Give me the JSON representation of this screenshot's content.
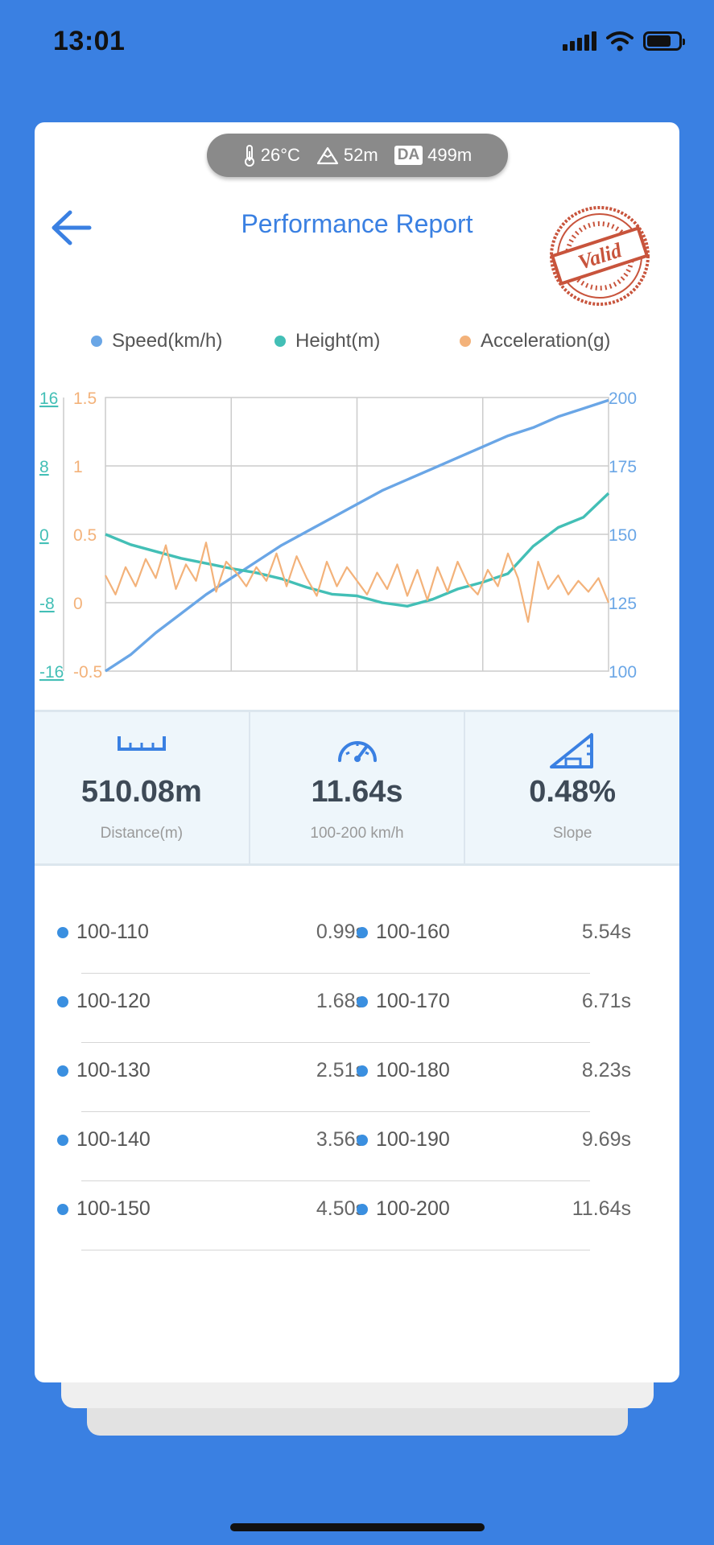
{
  "status_bar": {
    "time": "13:01"
  },
  "environment": {
    "temperature": "26°C",
    "altitude": "52m",
    "da_label": "DA",
    "density_altitude": "499m"
  },
  "header": {
    "title": "Performance Report",
    "stamp_text": "Valid"
  },
  "legend": [
    {
      "label": "Speed(km/h)",
      "color": "#6aa6e6"
    },
    {
      "label": "Height(m)",
      "color": "#43bfb6"
    },
    {
      "label": "Acceleration(g)",
      "color": "#f3b27a"
    }
  ],
  "chart_data": {
    "type": "line",
    "axes": {
      "height_ticks": [
        "16",
        "8",
        "0",
        "-8",
        "-16"
      ],
      "accel_ticks": [
        "1.5",
        "1",
        "0.5",
        "0",
        "-0.5"
      ],
      "speed_ticks": [
        "200",
        "175",
        "150",
        "125",
        "100"
      ],
      "height_range": [
        -16,
        16
      ],
      "accel_range": [
        -0.5,
        1.5
      ],
      "speed_range": [
        100,
        200
      ]
    },
    "x_range": [
      0,
      100
    ],
    "grid": true,
    "series": [
      {
        "name": "Speed(km/h)",
        "color": "#6aa6e6",
        "axis": "speed",
        "x": [
          0,
          5,
          10,
          15,
          20,
          25,
          30,
          35,
          40,
          45,
          50,
          55,
          60,
          65,
          70,
          75,
          80,
          85,
          90,
          95,
          100
        ],
        "y": [
          100,
          106,
          114,
          121,
          128,
          134,
          140,
          146,
          151,
          156,
          161,
          166,
          170,
          174,
          178,
          182,
          186,
          189,
          193,
          196,
          199
        ]
      },
      {
        "name": "Height(m)",
        "color": "#43bfb6",
        "axis": "height",
        "x": [
          0,
          5,
          10,
          15,
          20,
          25,
          30,
          35,
          40,
          45,
          50,
          55,
          60,
          65,
          70,
          75,
          80,
          85,
          90,
          95,
          100
        ],
        "y": [
          0,
          -1.2,
          -2,
          -2.8,
          -3.4,
          -4,
          -4.5,
          -5.2,
          -6.2,
          -7,
          -7.2,
          -8,
          -8.4,
          -7.6,
          -6.4,
          -5.6,
          -4.6,
          -1.4,
          0.8,
          2,
          4.8
        ]
      },
      {
        "name": "Acceleration(g)",
        "color": "#f3b27a",
        "axis": "accel",
        "x": [
          0,
          2,
          4,
          6,
          8,
          10,
          12,
          14,
          16,
          18,
          20,
          22,
          24,
          26,
          28,
          30,
          32,
          34,
          36,
          38,
          40,
          42,
          44,
          46,
          48,
          50,
          52,
          54,
          56,
          58,
          60,
          62,
          64,
          66,
          68,
          70,
          72,
          74,
          76,
          78,
          80,
          82,
          84,
          86,
          88,
          90,
          92,
          94,
          96,
          98,
          100
        ],
        "y": [
          0.2,
          0.06,
          0.26,
          0.12,
          0.32,
          0.18,
          0.42,
          0.1,
          0.28,
          0.16,
          0.44,
          0.08,
          0.3,
          0.22,
          0.12,
          0.26,
          0.16,
          0.36,
          0.12,
          0.34,
          0.18,
          0.05,
          0.3,
          0.12,
          0.26,
          0.16,
          0.06,
          0.22,
          0.1,
          0.28,
          0.05,
          0.24,
          0.02,
          0.26,
          0.08,
          0.3,
          0.14,
          0.06,
          0.24,
          0.12,
          0.36,
          0.18,
          -0.14,
          0.3,
          0.1,
          0.2,
          0.06,
          0.16,
          0.08,
          0.18,
          0.0
        ]
      }
    ]
  },
  "stats": [
    {
      "icon": "ruler-icon",
      "value": "510.08m",
      "label": "Distance(m)"
    },
    {
      "icon": "speedometer-icon",
      "value": "11.64s",
      "label": "100-200 km/h"
    },
    {
      "icon": "slope-icon",
      "value": "0.48%",
      "label": "Slope"
    }
  ],
  "splits": [
    {
      "left_range": "100-110",
      "left_time": "0.99s",
      "right_range": "100-160",
      "right_time": "5.54s"
    },
    {
      "left_range": "100-120",
      "left_time": "1.68s",
      "right_range": "100-170",
      "right_time": "6.71s"
    },
    {
      "left_range": "100-130",
      "left_time": "2.51s",
      "right_range": "100-180",
      "right_time": "8.23s"
    },
    {
      "left_range": "100-140",
      "left_time": "3.56s",
      "right_range": "100-190",
      "right_time": "9.69s"
    },
    {
      "left_range": "100-150",
      "left_time": "4.50s",
      "right_range": "100-200",
      "right_time": "11.64s"
    }
  ],
  "colors": {
    "background": "#3a80e2",
    "accent": "#3a80e2",
    "stamp": "#c8543c"
  }
}
